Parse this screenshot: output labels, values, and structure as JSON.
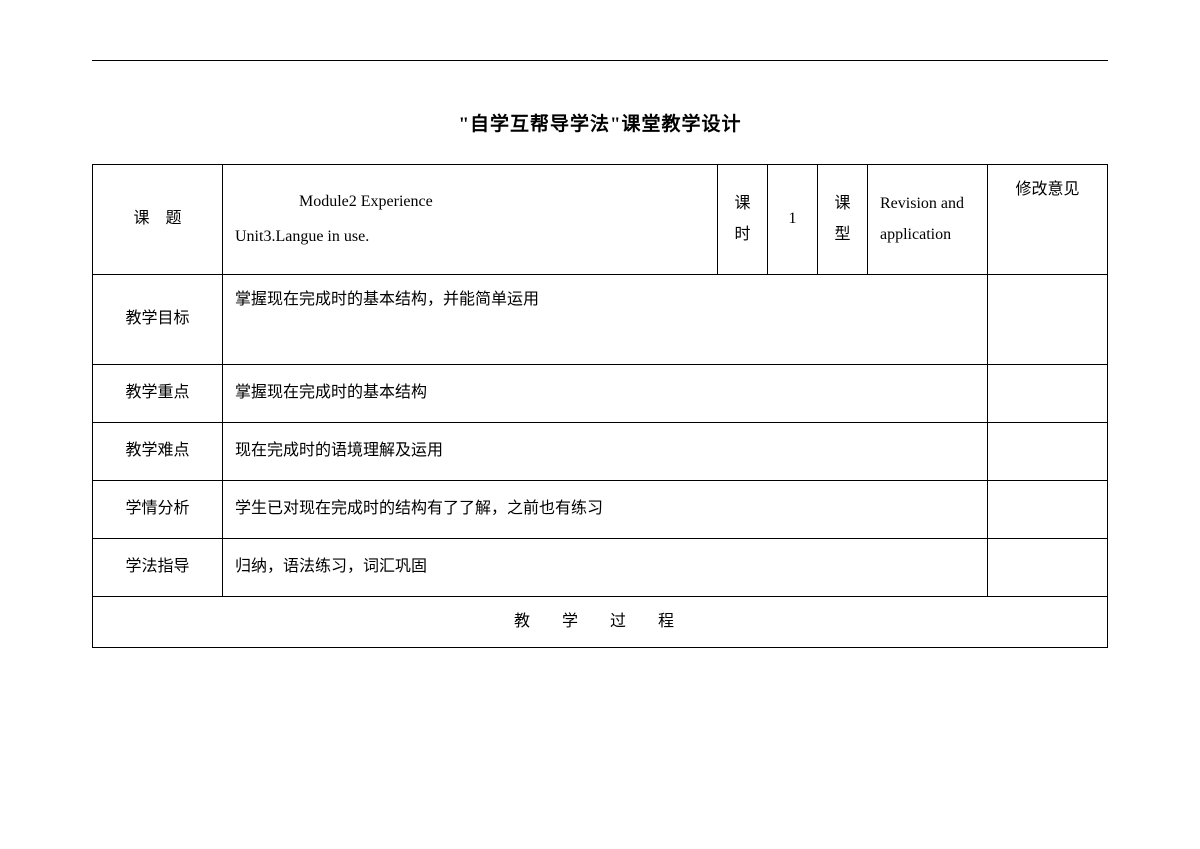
{
  "title": "\"自学互帮导学法\"课堂教学设计",
  "rows": {
    "topic_label": "课　题",
    "topic_value_line1": "Module2 Experience",
    "topic_value_line2": "Unit3.Langue in use.",
    "period_label": "课时",
    "period_value": "1",
    "type_label": "课型",
    "type_value": "Revision and application",
    "remark_label": "修改意见",
    "goal_label": "教学目标",
    "goal_value": "掌握现在完成时的基本结构，并能简单运用",
    "focus_label": "教学重点",
    "focus_value": "掌握现在完成时的基本结构",
    "difficulty_label": "教学难点",
    "difficulty_value": "现在完成时的语境理解及运用",
    "analysis_label": "学情分析",
    "analysis_value": "学生已对现在完成时的结构有了了解，之前也有练习",
    "method_label": "学法指导",
    "method_value": "归纳，语法练习，词汇巩固",
    "process_label": "教学过程"
  },
  "colors": {
    "border": "#000000",
    "background": "#ffffff",
    "text": "#000000"
  }
}
